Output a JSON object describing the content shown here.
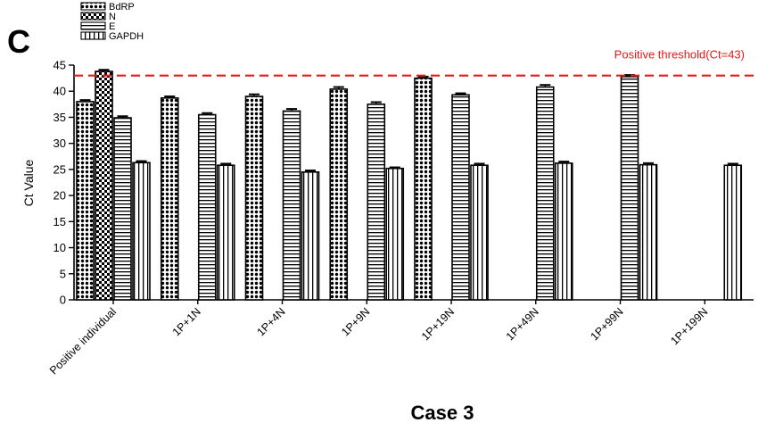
{
  "panel_label": "C",
  "caption": "Case 3",
  "chart_data": {
    "type": "bar",
    "title": "",
    "xlabel": "",
    "ylabel": "Ct Value",
    "ylim": [
      0,
      45
    ],
    "yticks": [
      0,
      5,
      10,
      15,
      20,
      25,
      30,
      35,
      40,
      45
    ],
    "categories": [
      "Positive individual",
      "1P+1N",
      "1P+4N",
      "1P+9N",
      "1P+19N",
      "1P+49N",
      "1P+99N",
      "1P+199N"
    ],
    "series": [
      {
        "name": "BdRP",
        "pattern": "dots",
        "values": [
          38.0,
          38.7,
          39.0,
          40.4,
          42.5,
          null,
          null,
          null
        ],
        "errors": [
          0.3,
          0.3,
          0.4,
          0.4,
          0.3,
          null,
          null,
          null
        ]
      },
      {
        "name": "N",
        "pattern": "checker",
        "values": [
          43.8,
          null,
          null,
          null,
          null,
          null,
          null,
          null
        ],
        "errors": [
          0.3,
          null,
          null,
          null,
          null,
          null,
          null,
          null
        ]
      },
      {
        "name": "E",
        "pattern": "hlines",
        "values": [
          34.9,
          35.5,
          36.2,
          37.5,
          39.3,
          40.8,
          42.8,
          null
        ],
        "errors": [
          0.3,
          0.3,
          0.4,
          0.4,
          0.3,
          0.4,
          0.3,
          null
        ]
      },
      {
        "name": "GAPDH",
        "pattern": "vlines",
        "values": [
          26.3,
          25.8,
          24.5,
          25.2,
          25.8,
          26.2,
          25.9,
          25.8
        ],
        "errors": [
          0.3,
          0.3,
          0.3,
          0.2,
          0.3,
          0.3,
          0.3,
          0.3
        ]
      }
    ],
    "threshold": {
      "value": 43,
      "label": "Positive threshold(Ct=43)",
      "color": "#e8191a",
      "style": "dashed"
    },
    "legend_position": "top-left",
    "grid": false
  }
}
